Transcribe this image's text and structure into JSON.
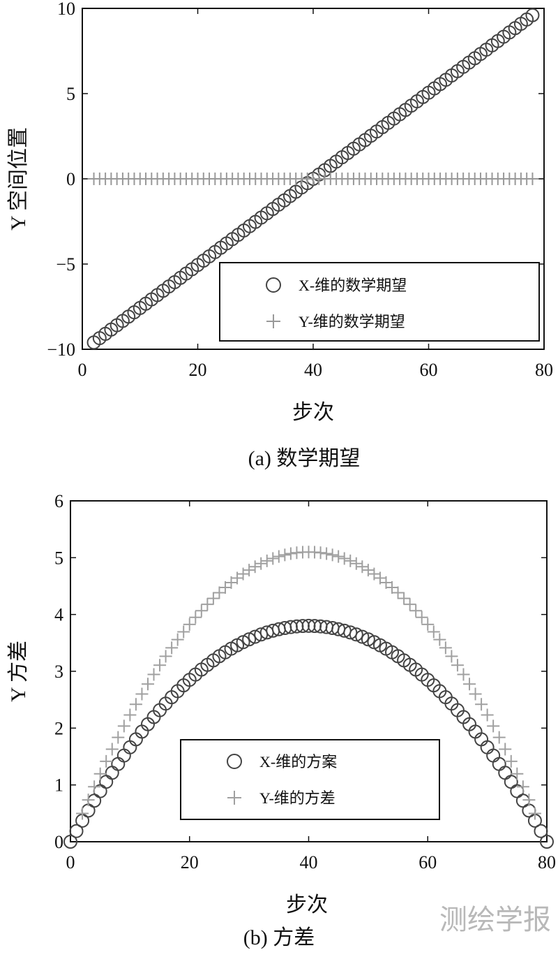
{
  "chart_data": [
    {
      "type": "scatter",
      "caption": "(a) 数学期望",
      "xlabel": "步次",
      "ylabel": "Y 空间位置",
      "xlim": [
        0,
        80
      ],
      "ylim": [
        -10,
        10
      ],
      "xticks": [
        "0",
        "20",
        "40",
        "60",
        "80"
      ],
      "yticks": [
        "10",
        "5",
        "0",
        "−5",
        "−10"
      ],
      "grid": false,
      "legend_position": "bottom-right",
      "series": [
        {
          "name": "X-维的数学期望",
          "marker": "circle",
          "color": "#444444",
          "x_start": 2,
          "x_end": 78,
          "x_step": 1,
          "y_formula": "linear",
          "y_start": -9.6,
          "y_end": 9.6
        },
        {
          "name": "Y-维的数学期望",
          "marker": "plus",
          "color": "#999999",
          "x_start": 2,
          "x_end": 78,
          "x_step": 1,
          "y_formula": "constant",
          "y_value": 0
        }
      ]
    },
    {
      "type": "scatter",
      "caption": "(b) 方差",
      "xlabel": "步次",
      "ylabel": "Y 方差",
      "xlim": [
        0,
        80
      ],
      "ylim": [
        0,
        6
      ],
      "xticks": [
        "0",
        "20",
        "40",
        "60",
        "80"
      ],
      "yticks": [
        "6",
        "5",
        "4",
        "3",
        "2",
        "1",
        "0"
      ],
      "grid": false,
      "legend_position": "bottom-center",
      "series": [
        {
          "name": "X-维的方案",
          "marker": "circle",
          "color": "#444444",
          "x_start": 0,
          "x_end": 80,
          "x_step": 1,
          "y_formula": "binomial_variance",
          "peak": 3.8
        },
        {
          "name": "Y-维的方差",
          "marker": "plus",
          "color": "#a0a0a0",
          "x_start": 2,
          "x_end": 78,
          "x_step": 1,
          "y_formula": "binomial_variance",
          "peak": 5.1
        }
      ]
    }
  ],
  "watermark": "测绘学报"
}
